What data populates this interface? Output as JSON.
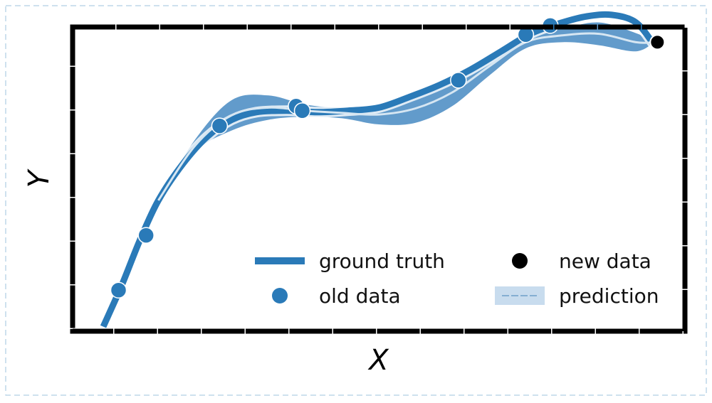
{
  "chart_data": {
    "type": "line",
    "title": "",
    "xlabel": "X",
    "ylabel": "Y",
    "xlim": [
      0,
      10
    ],
    "ylim": [
      0,
      10
    ],
    "grid": false,
    "legend_position": "lower-right",
    "colors": {
      "ground_truth": "#2a7ab8",
      "band": "#5a96c8",
      "old_data": "#2a7ab8",
      "new_data": "#000000",
      "inner_line": "#d6e6f2"
    },
    "series": [
      {
        "name": "ground truth",
        "x": [
          0.5,
          0.8,
          1.1,
          1.4,
          1.8,
          2.2,
          2.6,
          3.0,
          3.5,
          4.0,
          4.5,
          5.0,
          5.5,
          6.0,
          6.5,
          7.0,
          7.5,
          8.0,
          8.4,
          8.8,
          9.2,
          9.5
        ],
        "values": [
          0.15,
          1.5,
          3.0,
          4.3,
          5.5,
          6.4,
          6.95,
          7.2,
          7.25,
          7.2,
          7.25,
          7.35,
          7.7,
          8.1,
          8.6,
          9.2,
          9.8,
          10.15,
          10.35,
          10.4,
          10.15,
          9.4
        ]
      },
      {
        "name": "old data",
        "x": [
          0.75,
          1.2,
          2.4,
          3.65,
          3.75,
          6.3,
          7.4,
          7.8
        ],
        "values": [
          1.35,
          3.15,
          6.75,
          7.4,
          7.25,
          8.25,
          9.75,
          10.05
        ]
      },
      {
        "name": "new data",
        "x": [
          9.55
        ],
        "values": [
          9.5
        ]
      },
      {
        "name": "prediction",
        "x": [
          1.4,
          2.0,
          2.6,
          3.2,
          3.8,
          4.4,
          5.0,
          5.6,
          6.2,
          6.8,
          7.4,
          8.0,
          8.6,
          9.2,
          9.5
        ],
        "upper": [
          4.3,
          6.3,
          7.6,
          7.75,
          7.45,
          7.35,
          7.45,
          7.8,
          8.3,
          9.0,
          9.7,
          9.95,
          10.15,
          9.8,
          9.5
        ],
        "lower": [
          4.3,
          5.9,
          6.6,
          6.95,
          7.05,
          7.0,
          6.8,
          6.85,
          7.4,
          8.4,
          9.3,
          9.5,
          9.4,
          9.2,
          9.5
        ]
      }
    ],
    "legend": [
      {
        "label": "ground truth",
        "kind": "line"
      },
      {
        "label": "new data",
        "kind": "new-point"
      },
      {
        "label": "old data",
        "kind": "old-point"
      },
      {
        "label": "prediction",
        "kind": "band"
      }
    ]
  }
}
